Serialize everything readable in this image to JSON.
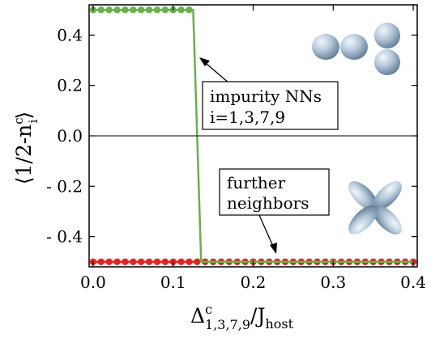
{
  "chart_data": {
    "type": "line",
    "xlabel": {
      "base": "Δ",
      "sup": "c",
      "sub": "1,3,7,9",
      "rest": "/J",
      "rest_sub": "host"
    },
    "ylabel": {
      "pre": "⟨1/2-n",
      "sup": "c",
      "sub": "i",
      "post": "⟩"
    },
    "xlim": [
      -0.005,
      0.405
    ],
    "ylim": [
      -0.52,
      0.52
    ],
    "x_ticks": [
      0.0,
      0.1,
      0.2,
      0.3,
      0.4
    ],
    "x_tick_labels": [
      "0.0",
      "0.1",
      "0.2",
      "0.3",
      "0.4"
    ],
    "y_ticks": [
      0.4,
      0.2,
      0.0,
      -0.2,
      -0.4
    ],
    "y_tick_labels": [
      "0.4",
      "0.2",
      "0.0",
      "- 0.2",
      "- 0.4"
    ],
    "grid": false,
    "series": [
      {
        "label_lines": [
          "impurity NNs",
          "i=1,3,7,9"
        ],
        "color": "#6ab04c",
        "x": [
          0.0,
          0.01,
          0.02,
          0.03,
          0.04,
          0.05,
          0.06,
          0.07,
          0.08,
          0.09,
          0.1,
          0.11,
          0.12,
          0.125,
          0.135,
          0.14,
          0.15,
          0.16,
          0.17,
          0.18,
          0.19,
          0.2,
          0.21,
          0.22,
          0.23,
          0.24,
          0.25,
          0.26,
          0.27,
          0.28,
          0.29,
          0.3,
          0.31,
          0.32,
          0.33,
          0.34,
          0.35,
          0.36,
          0.37,
          0.38,
          0.39,
          0.4
        ],
        "y": [
          0.5,
          0.5,
          0.5,
          0.5,
          0.5,
          0.5,
          0.5,
          0.5,
          0.5,
          0.5,
          0.5,
          0.5,
          0.5,
          0.5,
          -0.5,
          -0.5,
          -0.5,
          -0.5,
          -0.5,
          -0.5,
          -0.5,
          -0.5,
          -0.5,
          -0.5,
          -0.5,
          -0.5,
          -0.5,
          -0.5,
          -0.5,
          -0.5,
          -0.5,
          -0.5,
          -0.5,
          -0.5,
          -0.5,
          -0.5,
          -0.5,
          -0.5,
          -0.5,
          -0.5,
          -0.5,
          -0.5
        ],
        "markers_x": [
          0.0,
          0.01,
          0.02,
          0.03,
          0.04,
          0.05,
          0.06,
          0.07,
          0.08,
          0.09,
          0.1,
          0.11,
          0.12
        ]
      },
      {
        "label_lines": [
          "further",
          "neighbors"
        ],
        "color": "#e32424",
        "x": [
          0.0,
          0.01,
          0.02,
          0.03,
          0.04,
          0.05,
          0.06,
          0.07,
          0.08,
          0.09,
          0.1,
          0.11,
          0.12,
          0.13,
          0.14,
          0.15,
          0.16,
          0.17,
          0.18,
          0.19,
          0.2,
          0.21,
          0.22,
          0.23,
          0.24,
          0.25,
          0.26,
          0.27,
          0.28,
          0.29,
          0.3,
          0.31,
          0.32,
          0.33,
          0.34,
          0.35,
          0.36,
          0.37,
          0.38,
          0.39,
          0.4
        ],
        "y": [
          -0.5,
          -0.5,
          -0.5,
          -0.5,
          -0.5,
          -0.5,
          -0.5,
          -0.5,
          -0.5,
          -0.5,
          -0.5,
          -0.5,
          -0.5,
          -0.5,
          -0.5,
          -0.5,
          -0.5,
          -0.5,
          -0.5,
          -0.5,
          -0.5,
          -0.5,
          -0.5,
          -0.5,
          -0.5,
          -0.5,
          -0.5,
          -0.5,
          -0.5,
          -0.5,
          -0.5,
          -0.5,
          -0.5,
          -0.5,
          -0.5,
          -0.5,
          -0.5,
          -0.5,
          -0.5,
          -0.5,
          -0.5
        ]
      }
    ],
    "annotations": [
      {
        "lines": [
          "impurity NNs",
          "i=1,3,7,9"
        ],
        "points_to": "impurity NNs curve"
      },
      {
        "lines": [
          "further",
          "neighbors"
        ],
        "points_to": "further neighbors curve"
      }
    ],
    "orbital_icons": [
      "dxz-orbital-icon",
      "dxy-orbital-icon"
    ]
  }
}
